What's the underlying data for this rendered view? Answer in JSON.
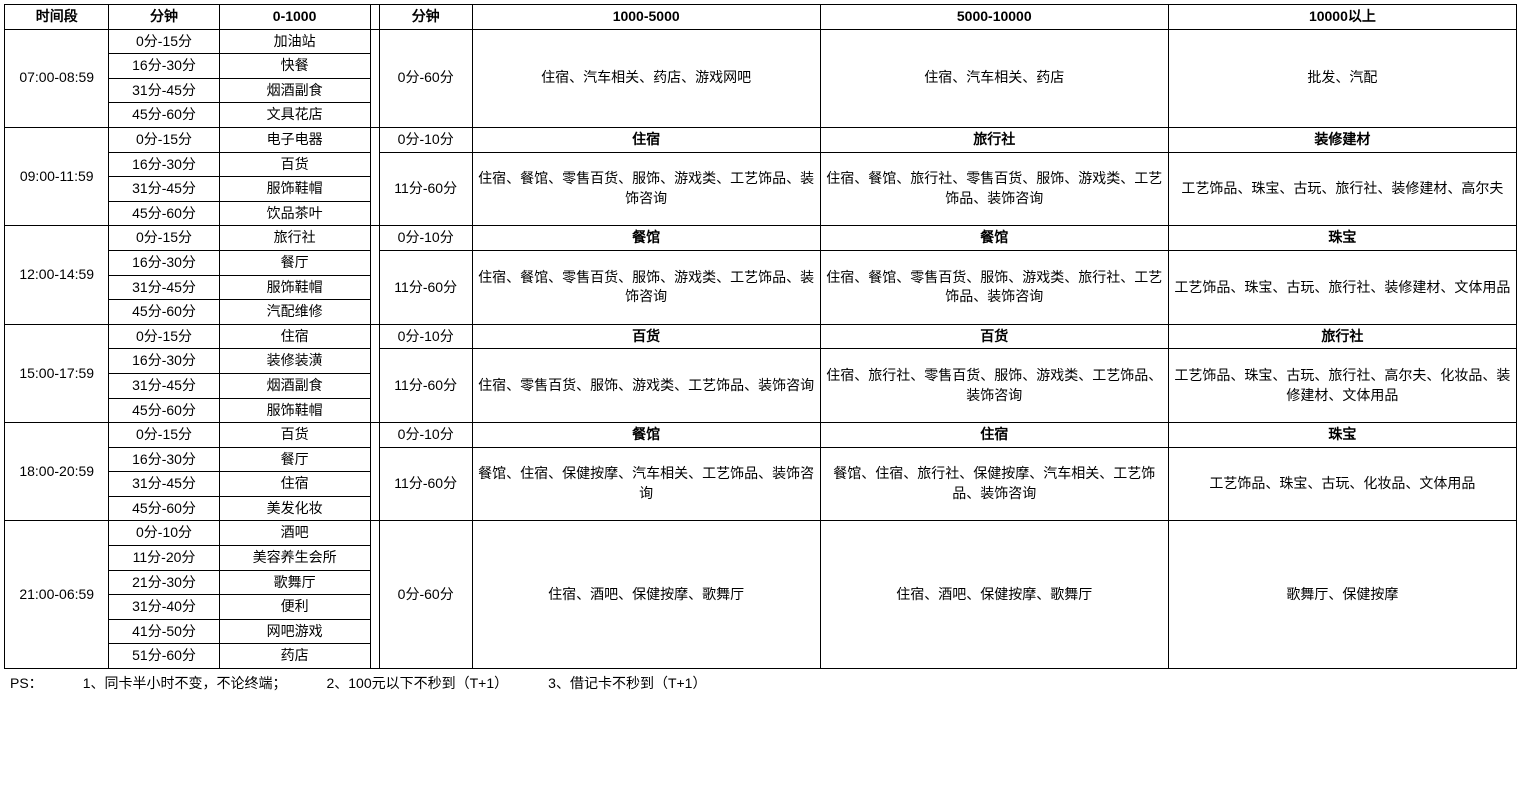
{
  "headers": {
    "time": "时间段",
    "min1": "分钟",
    "c0": "0-1000",
    "min2": "分钟",
    "c1": "1000-5000",
    "c2": "5000-10000",
    "c3": "10000以上"
  },
  "slots": [
    {
      "time": "07:00-08:59",
      "left": [
        {
          "min": "0分-15分",
          "cat": "加油站"
        },
        {
          "min": "16分-30分",
          "cat": "快餐"
        },
        {
          "min": "31分-45分",
          "cat": "烟酒副食"
        },
        {
          "min": "45分-60分",
          "cat": "文具花店"
        }
      ],
      "right": [
        {
          "min": "0分-60分",
          "span": 4,
          "bold": false,
          "c1": "住宿、汽车相关、药店、游戏网吧",
          "c2": "住宿、汽车相关、药店",
          "c3": "批发、汽配"
        }
      ]
    },
    {
      "time": "09:00-11:59",
      "left": [
        {
          "min": "0分-15分",
          "cat": "电子电器"
        },
        {
          "min": "16分-30分",
          "cat": "百货"
        },
        {
          "min": "31分-45分",
          "cat": "服饰鞋帽"
        },
        {
          "min": "45分-60分",
          "cat": "饮品茶叶"
        }
      ],
      "right": [
        {
          "min": "0分-10分",
          "span": 1,
          "bold": true,
          "c1": "住宿",
          "c2": "旅行社",
          "c3": "装修建材"
        },
        {
          "min": "11分-60分",
          "span": 3,
          "bold": false,
          "c1": "住宿、餐馆、零售百货、服饰、游戏类、工艺饰品、装饰咨询",
          "c2": "住宿、餐馆、旅行社、零售百货、服饰、游戏类、工艺饰品、装饰咨询",
          "c3": "工艺饰品、珠宝、古玩、旅行社、装修建材、高尔夫"
        }
      ]
    },
    {
      "time": "12:00-14:59",
      "left": [
        {
          "min": "0分-15分",
          "cat": "旅行社"
        },
        {
          "min": "16分-30分",
          "cat": "餐厅"
        },
        {
          "min": "31分-45分",
          "cat": "服饰鞋帽"
        },
        {
          "min": "45分-60分",
          "cat": "汽配维修"
        }
      ],
      "right": [
        {
          "min": "0分-10分",
          "span": 1,
          "bold": true,
          "c1": "餐馆",
          "c2": "餐馆",
          "c3": "珠宝"
        },
        {
          "min": "11分-60分",
          "span": 3,
          "bold": false,
          "c1": "住宿、餐馆、零售百货、服饰、游戏类、工艺饰品、装饰咨询",
          "c2": "住宿、餐馆、零售百货、服饰、游戏类、旅行社、工艺饰品、装饰咨询",
          "c3": "工艺饰品、珠宝、古玩、旅行社、装修建材、文体用品"
        }
      ]
    },
    {
      "time": "15:00-17:59",
      "left": [
        {
          "min": "0分-15分",
          "cat": "住宿"
        },
        {
          "min": "16分-30分",
          "cat": "装修装潢"
        },
        {
          "min": "31分-45分",
          "cat": "烟酒副食"
        },
        {
          "min": "45分-60分",
          "cat": "服饰鞋帽"
        }
      ],
      "right": [
        {
          "min": "0分-10分",
          "span": 1,
          "bold": true,
          "c1": "百货",
          "c2": "百货",
          "c3": "旅行社"
        },
        {
          "min": "11分-60分",
          "span": 3,
          "bold": false,
          "c1": "住宿、零售百货、服饰、游戏类、工艺饰品、装饰咨询",
          "c2": "住宿、旅行社、零售百货、服饰、游戏类、工艺饰品、装饰咨询",
          "c3": "工艺饰品、珠宝、古玩、旅行社、高尔夫、化妆品、装修建材、文体用品"
        }
      ]
    },
    {
      "time": "18:00-20:59",
      "left": [
        {
          "min": "0分-15分",
          "cat": "百货"
        },
        {
          "min": "16分-30分",
          "cat": "餐厅"
        },
        {
          "min": "31分-45分",
          "cat": "住宿"
        },
        {
          "min": "45分-60分",
          "cat": "美发化妆"
        }
      ],
      "right": [
        {
          "min": "0分-10分",
          "span": 1,
          "bold": true,
          "c1": "餐馆",
          "c2": "住宿",
          "c3": "珠宝"
        },
        {
          "min": "11分-60分",
          "span": 3,
          "bold": false,
          "c1": "餐馆、住宿、保健按摩、汽车相关、工艺饰品、装饰咨询",
          "c2": "餐馆、住宿、旅行社、保健按摩、汽车相关、工艺饰品、装饰咨询",
          "c3": "工艺饰品、珠宝、古玩、化妆品、文体用品"
        }
      ]
    },
    {
      "time": "21:00-06:59",
      "left": [
        {
          "min": "0分-10分",
          "cat": "酒吧"
        },
        {
          "min": "11分-20分",
          "cat": "美容养生会所"
        },
        {
          "min": "21分-30分",
          "cat": "歌舞厅"
        },
        {
          "min": "31分-40分",
          "cat": "便利"
        },
        {
          "min": "41分-50分",
          "cat": "网吧游戏"
        },
        {
          "min": "51分-60分",
          "cat": "药店"
        }
      ],
      "right": [
        {
          "min": "0分-60分",
          "span": 6,
          "bold": false,
          "c1": "住宿、酒吧、保健按摩、歌舞厅",
          "c2": "住宿、酒吧、保健按摩、歌舞厅",
          "c3": "歌舞厅、保健按摩"
        }
      ]
    }
  ],
  "footer": {
    "ps": "PS：",
    "n1": "1、同卡半小时不变，不论终端；",
    "n2": "2、100元以下不秒到（T+1）",
    "n3": "3、借记卡不秒到（T+1）"
  }
}
